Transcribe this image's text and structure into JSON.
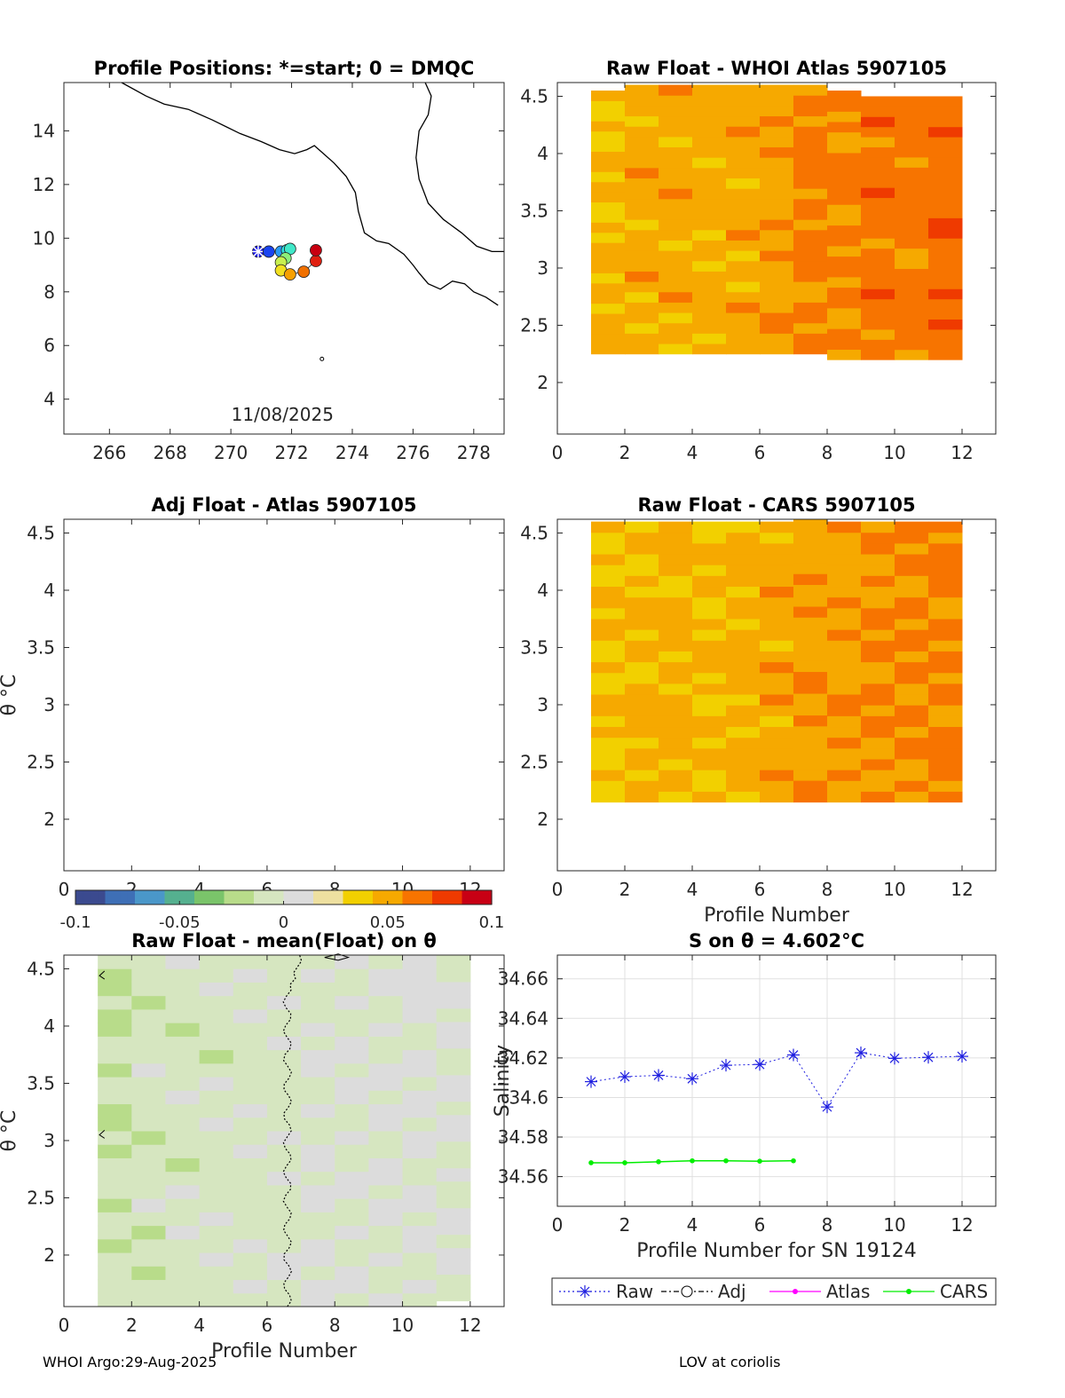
{
  "colors": {
    "axis": "#262626",
    "grid": "#e0e0e0",
    "raw": "#1f1fe0",
    "cars": "#00ee00",
    "atlas": "#ff00ff",
    "coast": "#000000",
    "colormap": [
      "#3b4a8f",
      "#3e6fb6",
      "#4a97c9",
      "#55b08f",
      "#7ac46a",
      "#b8dc8a",
      "#d6e6c0",
      "#dcdcdc",
      "#eee0a0",
      "#f2d000",
      "#f6a900",
      "#f77400",
      "#ef3a00",
      "#c80014"
    ]
  },
  "footer": {
    "left": "WHOI Argo:29-Aug-2025",
    "right": "LOV at coriolis"
  },
  "chart_data": [
    {
      "id": "map",
      "type": "scatter",
      "title": "Profile Positions: *=start; 0 = DMQC",
      "xlim": [
        264.5,
        279
      ],
      "ylim": [
        2.7,
        15.8
      ],
      "xticks": [
        266,
        268,
        270,
        272,
        274,
        276,
        278
      ],
      "yticks": [
        4,
        6,
        8,
        10,
        12,
        14
      ],
      "annotation": "11/08/2025",
      "points": [
        {
          "lon": 270.9,
          "lat": 9.5,
          "color": "#1a1ae6",
          "start": true
        },
        {
          "lon": 271.25,
          "lat": 9.5,
          "color": "#1a44f0"
        },
        {
          "lon": 271.65,
          "lat": 9.5,
          "color": "#2a9af5"
        },
        {
          "lon": 271.85,
          "lat": 9.55,
          "color": "#2ee0e0"
        },
        {
          "lon": 271.95,
          "lat": 9.6,
          "color": "#40e8c8"
        },
        {
          "lon": 271.8,
          "lat": 9.25,
          "color": "#8cf07a"
        },
        {
          "lon": 271.65,
          "lat": 9.1,
          "color": "#c8f050"
        },
        {
          "lon": 271.65,
          "lat": 8.8,
          "color": "#f2e020"
        },
        {
          "lon": 271.95,
          "lat": 8.65,
          "color": "#f6a000"
        },
        {
          "lon": 272.4,
          "lat": 8.75,
          "color": "#f07000"
        },
        {
          "lon": 272.8,
          "lat": 9.15,
          "color": "#e02010"
        },
        {
          "lon": 272.8,
          "lat": 9.55,
          "color": "#c80010"
        }
      ]
    },
    {
      "id": "raw-atlas",
      "type": "heatmap",
      "title": "Raw Float - WHOI Atlas  5907105",
      "xlim": [
        0,
        13
      ],
      "ylim": [
        1.55,
        4.62
      ],
      "xticks": [
        0,
        2,
        4,
        6,
        8,
        10,
        12
      ],
      "yticks": [
        2,
        2.5,
        3,
        3.5,
        4,
        4.5
      ],
      "profiles": [
        1,
        2,
        3,
        4,
        5,
        6,
        7,
        8,
        9,
        10,
        11,
        12
      ],
      "theta_top": [
        4.55,
        4.6,
        4.6,
        4.6,
        4.6,
        4.6,
        4.6,
        4.55,
        4.5,
        4.5,
        4.5,
        4.5
      ],
      "theta_bottom": [
        2.25,
        2.25,
        2.25,
        2.25,
        2.25,
        2.25,
        2.25,
        2.2,
        2.2,
        2.2,
        2.2,
        2.2
      ],
      "anomaly": [
        0.045,
        0.048,
        0.05,
        0.047,
        0.05,
        0.053,
        0.06,
        0.058,
        0.064,
        0.063,
        0.066,
        0.066
      ]
    },
    {
      "id": "adj-atlas",
      "type": "heatmap",
      "title": "Adj Float - Atlas  5907105",
      "ylabel": "θ °C",
      "xlim": [
        0,
        13
      ],
      "ylim": [
        1.55,
        4.62
      ],
      "xticks": [
        0,
        2,
        4,
        6,
        8,
        10,
        12
      ],
      "yticks": [
        2,
        2.5,
        3,
        3.5,
        4,
        4.5
      ],
      "profiles": [],
      "anomaly": []
    },
    {
      "id": "raw-cars",
      "type": "heatmap",
      "title": "Raw Float - CARS  5907105",
      "xlabel": "Profile Number",
      "xlim": [
        0,
        13
      ],
      "ylim": [
        1.55,
        4.62
      ],
      "xticks": [
        0,
        2,
        4,
        6,
        8,
        10,
        12
      ],
      "yticks": [
        2,
        2.5,
        3,
        3.5,
        4,
        4.5
      ],
      "profiles": [
        1,
        2,
        3,
        4,
        5,
        6,
        7,
        8,
        9,
        10,
        11,
        12
      ],
      "theta_top": [
        4.6,
        4.6,
        4.6,
        4.6,
        4.6,
        4.6,
        4.62,
        4.6,
        4.6,
        4.6,
        4.6,
        4.6
      ],
      "theta_bottom": [
        2.15,
        2.15,
        2.15,
        2.15,
        2.15,
        2.15,
        2.15,
        2.15,
        2.15,
        2.15,
        2.15,
        2.15
      ],
      "anomaly": [
        0.042,
        0.045,
        0.046,
        0.043,
        0.046,
        0.05,
        0.054,
        0.055,
        0.058,
        0.058,
        0.06,
        0.06
      ]
    },
    {
      "id": "colorbar",
      "type": "colorbar",
      "range": [
        -0.1,
        0.1
      ],
      "ticks": [
        "-0.1",
        "-0.05",
        "0",
        "0.05",
        "0.1"
      ]
    },
    {
      "id": "raw-mean",
      "type": "heatmap",
      "title": "Raw Float - mean(Float) on θ",
      "xlabel": "Profile Number",
      "ylabel": "θ °C",
      "xlim": [
        0,
        13
      ],
      "ylim": [
        1.55,
        4.62
      ],
      "xticks": [
        0,
        2,
        4,
        6,
        8,
        10,
        12
      ],
      "yticks": [
        2,
        2.5,
        3,
        3.5,
        4,
        4.5
      ],
      "profiles": [
        1,
        2,
        3,
        4,
        5,
        6,
        7,
        8,
        9,
        10,
        11,
        12
      ],
      "theta_top": [
        4.62,
        4.62,
        4.62,
        4.62,
        4.62,
        4.62,
        4.62,
        4.62,
        4.62,
        4.62,
        4.62,
        4.62
      ],
      "theta_bottom": [
        1.55,
        1.55,
        1.55,
        1.55,
        1.55,
        1.55,
        1.55,
        1.55,
        1.55,
        1.55,
        1.6,
        1.6
      ],
      "anomaly": [
        -0.012,
        -0.008,
        -0.006,
        -0.005,
        -0.004,
        -0.003,
        0.0,
        0.0,
        0.0,
        0.001,
        0.001,
        0.0
      ],
      "zero_contour_profile": 6.6
    },
    {
      "id": "salinity",
      "type": "line",
      "title": "S on θ = 4.602°C",
      "xlabel": "Profile Number for SN 19124",
      "ylabel": "Salinity",
      "xlim": [
        0,
        13
      ],
      "ylim": [
        34.545,
        34.672
      ],
      "xticks": [
        0,
        2,
        4,
        6,
        8,
        10,
        12
      ],
      "yticks": [
        34.56,
        34.58,
        34.6,
        34.62,
        34.64,
        34.66
      ],
      "ytick_labels": [
        "34.56",
        "34.58",
        "34.6",
        "34.62",
        "34.64",
        "34.66"
      ],
      "series": [
        {
          "name": "Raw",
          "x": [
            1,
            2,
            3,
            4,
            5,
            6,
            7,
            8,
            9,
            10,
            11,
            12
          ],
          "values": [
            34.608,
            34.6105,
            34.6112,
            34.6095,
            34.6163,
            34.6167,
            34.6215,
            34.5952,
            34.6226,
            34.6198,
            34.6203,
            34.6208
          ]
        },
        {
          "name": "Adj",
          "x": [],
          "values": []
        },
        {
          "name": "Atlas",
          "x": [],
          "values": []
        },
        {
          "name": "CARS",
          "x": [
            1,
            2,
            3,
            4,
            5,
            6,
            7
          ],
          "values": [
            34.567,
            34.567,
            34.5675,
            34.568,
            34.568,
            34.5678,
            34.568
          ]
        }
      ],
      "legend": [
        "Raw",
        "Adj",
        "Atlas",
        "CARS"
      ]
    }
  ]
}
